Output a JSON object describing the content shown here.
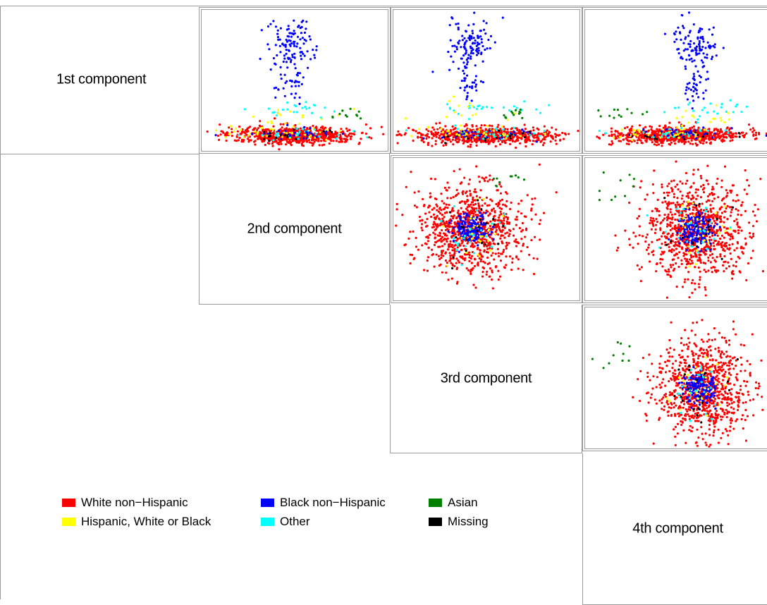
{
  "chart_data": {
    "type": "scatter",
    "title": "",
    "diagonal_labels": [
      "1st component",
      "2nd component",
      "3rd component",
      "4th component"
    ],
    "legend": [
      {
        "name": "White non−Hispanic",
        "color": "#ff0000"
      },
      {
        "name": "Black non−Hispanic",
        "color": "#0000ff"
      },
      {
        "name": "Asian",
        "color": "#008000"
      },
      {
        "name": "Hispanic, White or Black",
        "color": "#ffff00"
      },
      {
        "name": "Other",
        "color": "#00ffff"
      },
      {
        "name": "Missing",
        "color": "#000000"
      }
    ],
    "panels": [
      {
        "row": "1st component",
        "col": "2nd component"
      },
      {
        "row": "1st component",
        "col": "3rd component"
      },
      {
        "row": "1st component",
        "col": "4th component"
      },
      {
        "row": "2nd component",
        "col": "3rd component"
      },
      {
        "row": "2nd component",
        "col": "4th component"
      },
      {
        "row": "3rd component",
        "col": "4th component"
      }
    ],
    "axes": "none",
    "grid": false,
    "legend_position": "bottom-left"
  }
}
